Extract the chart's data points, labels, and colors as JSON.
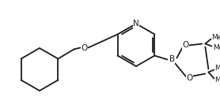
{
  "background": "#ffffff",
  "line_color": "#1a1a1a",
  "line_width": 1.3,
  "figsize": [
    2.78,
    1.42
  ],
  "dpi": 100,
  "atoms": {
    "N_label": "N",
    "O1_label": "O",
    "O2_label": "O",
    "O3_label": "O",
    "B_label": "B"
  },
  "methyl_labels": [
    "",
    "",
    "",
    ""
  ]
}
